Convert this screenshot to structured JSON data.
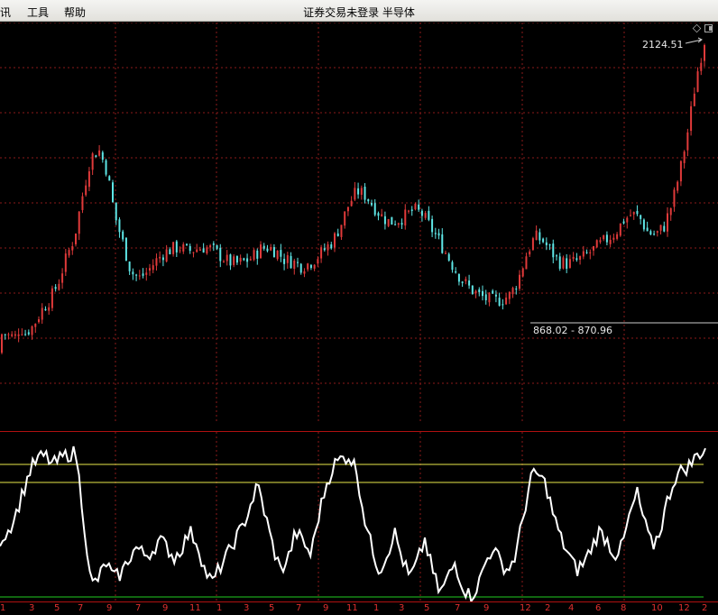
{
  "menu": {
    "item_partial": "讯",
    "tools": "工具",
    "help": "帮助"
  },
  "window": {
    "title": "证券交易未登录  半导体"
  },
  "main_chart": {
    "high_label": "2124.51",
    "low_label": "868.02 - 870.96",
    "up_color": "#e03a3a",
    "down_color": "#5ee6e6",
    "grid_color": "#8b1a1a"
  },
  "indicator": {
    "line_color": "#ffffff",
    "upper_band_color": "#e8e84a",
    "lower_band_color": "#22cc22"
  },
  "time_axis": [
    "1",
    "3",
    "5",
    "7",
    "9",
    "7",
    "9",
    "11",
    "1",
    "3",
    "5",
    "7",
    "9",
    "11",
    "1",
    "3",
    "5",
    "7",
    "9",
    "12",
    "2",
    "4",
    "6",
    "8",
    "10",
    "12",
    "2"
  ],
  "chart_data": [
    {
      "type": "candlestick",
      "title": "半导体",
      "series": [
        {
          "name": "半导体",
          "values": [
            620,
            630,
            650,
            700,
            760,
            830,
            880,
            960,
            1080,
            1180,
            1380,
            1560,
            1600,
            1500,
            1280,
            1150,
            1010,
            980,
            1010,
            1060,
            1100,
            1120,
            1130,
            1110,
            1120,
            1130,
            1120,
            1090,
            1060,
            1050,
            1060,
            1080,
            1120,
            1130,
            1110,
            1070,
            1060,
            1040,
            1050,
            1080,
            1120,
            1160,
            1240,
            1340,
            1400,
            1380,
            1330,
            1280,
            1250,
            1260,
            1280,
            1310,
            1290,
            1230,
            1170,
            1100,
            1030,
            970,
            930,
            900,
            880,
            870,
            880,
            900,
            980,
            1100,
            1180,
            1160,
            1110,
            1060,
            1050,
            1060,
            1080,
            1110,
            1140,
            1170,
            1200,
            1260,
            1290,
            1270,
            1200,
            1190,
            1230,
            1340,
            1500,
            1700,
            1950,
            2124.51
          ]
        }
      ],
      "annotations": [
        "2124.51",
        "868.02 - 870.96"
      ]
    },
    {
      "type": "line",
      "series": [
        {
          "name": "",
          "values": [
            40,
            45,
            55,
            70,
            85,
            92,
            94,
            88,
            92,
            95,
            96,
            55,
            10,
            15,
            25,
            15,
            18,
            28,
            35,
            30,
            32,
            40,
            35,
            28,
            35,
            45,
            38,
            20,
            12,
            22,
            30,
            40,
            48,
            62,
            75,
            55,
            35,
            20,
            28,
            45,
            38,
            30,
            55,
            75,
            88,
            92,
            94,
            85,
            55,
            35,
            20,
            30,
            45,
            28,
            15,
            25,
            40,
            20,
            5,
            15,
            25,
            10,
            3,
            10,
            25,
            35,
            25,
            20,
            30,
            55,
            80,
            82,
            75,
            55,
            40,
            30,
            20,
            25,
            35,
            45,
            40,
            30,
            35,
            55,
            70,
            50,
            35,
            45,
            65,
            80,
            85,
            88,
            95,
            98
          ]
        }
      ],
      "reference_lines": [
        {
          "color": "yellow"
        },
        {
          "color": "yellow"
        },
        {
          "color": "green"
        }
      ]
    }
  ]
}
